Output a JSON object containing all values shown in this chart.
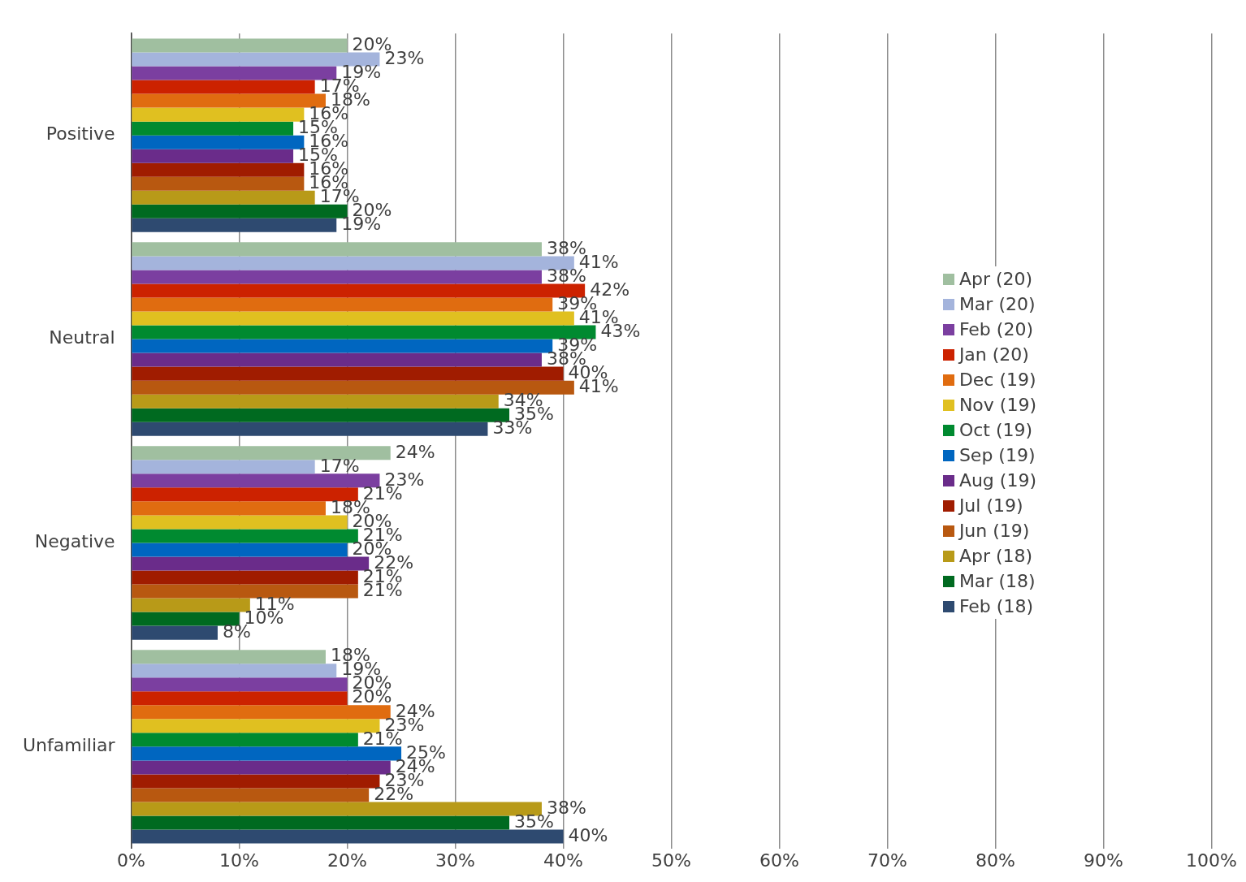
{
  "chart_data": {
    "type": "bar",
    "orientation": "horizontal",
    "categories": [
      "Positive",
      "Neutral",
      "Negative",
      "Unfamiliar"
    ],
    "xlim": [
      0,
      100
    ],
    "xticks": [
      {
        "value": 0,
        "label": "0%"
      },
      {
        "value": 10,
        "label": "10%"
      },
      {
        "value": 20,
        "label": "20%"
      },
      {
        "value": 30,
        "label": "30%"
      },
      {
        "value": 40,
        "label": "40%"
      },
      {
        "value": 50,
        "label": "50%"
      },
      {
        "value": 60,
        "label": "60%"
      },
      {
        "value": 70,
        "label": "70%"
      },
      {
        "value": 80,
        "label": "80%"
      },
      {
        "value": 90,
        "label": "90%"
      },
      {
        "value": 100,
        "label": "100%"
      }
    ],
    "grid": "x",
    "legend": "right",
    "series": [
      {
        "name": "Apr (20)",
        "color": "#a0bfa0",
        "values": [
          20,
          38,
          24,
          18
        ],
        "value_labels": [
          "20%",
          "38%",
          "24%",
          "18%"
        ]
      },
      {
        "name": "Mar (20)",
        "color": "#a4b4dc",
        "values": [
          23,
          41,
          17,
          19
        ],
        "value_labels": [
          "23%",
          "41%",
          "17%",
          "19%"
        ]
      },
      {
        "name": "Feb (20)",
        "color": "#7b3fa0",
        "values": [
          19,
          38,
          23,
          20
        ],
        "value_labels": [
          "19%",
          "38%",
          "23%",
          "20%"
        ]
      },
      {
        "name": "Jan (20)",
        "color": "#cc2200",
        "values": [
          17,
          42,
          21,
          20
        ],
        "value_labels": [
          "17%",
          "42%",
          "21%",
          "20%"
        ]
      },
      {
        "name": "Dec (19)",
        "color": "#e06c10",
        "values": [
          18,
          39,
          18,
          24
        ],
        "value_labels": [
          "18%",
          "39%",
          "18%",
          "24%"
        ]
      },
      {
        "name": "Nov (19)",
        "color": "#e0c020",
        "values": [
          16,
          41,
          20,
          23
        ],
        "value_labels": [
          "16%",
          "41%",
          "20%",
          "23%"
        ]
      },
      {
        "name": "Oct (19)",
        "color": "#008a30",
        "values": [
          15,
          43,
          21,
          21
        ],
        "value_labels": [
          "15%",
          "43%",
          "21%",
          "21%"
        ]
      },
      {
        "name": "Sep (19)",
        "color": "#0066c0",
        "values": [
          16,
          39,
          20,
          25
        ],
        "value_labels": [
          "16%",
          "39%",
          "20%",
          "25%"
        ]
      },
      {
        "name": "Aug (19)",
        "color": "#6a2c8a",
        "values": [
          15,
          38,
          22,
          24
        ],
        "value_labels": [
          "15%",
          "38%",
          "22%",
          "24%"
        ]
      },
      {
        "name": "Jul (19)",
        "color": "#a01c00",
        "values": [
          16,
          40,
          21,
          23
        ],
        "value_labels": [
          "16%",
          "40%",
          "21%",
          "23%"
        ]
      },
      {
        "name": "Jun (19)",
        "color": "#b85810",
        "values": [
          16,
          41,
          21,
          22
        ],
        "value_labels": [
          "16%",
          "41%",
          "21%",
          "22%"
        ]
      },
      {
        "name": "Apr (18)",
        "color": "#b89a18",
        "values": [
          17,
          34,
          11,
          38
        ],
        "value_labels": [
          "17%",
          "34%",
          "11%",
          "38%"
        ]
      },
      {
        "name": "Mar (18)",
        "color": "#006a20",
        "values": [
          20,
          35,
          10,
          35
        ],
        "value_labels": [
          "20%",
          "35%",
          "10%",
          "35%"
        ]
      },
      {
        "name": "Feb (18)",
        "color": "#2e4a70",
        "values": [
          19,
          33,
          8,
          40
        ],
        "value_labels": [
          "19%",
          "33%",
          "8%",
          "40%"
        ]
      }
    ]
  }
}
